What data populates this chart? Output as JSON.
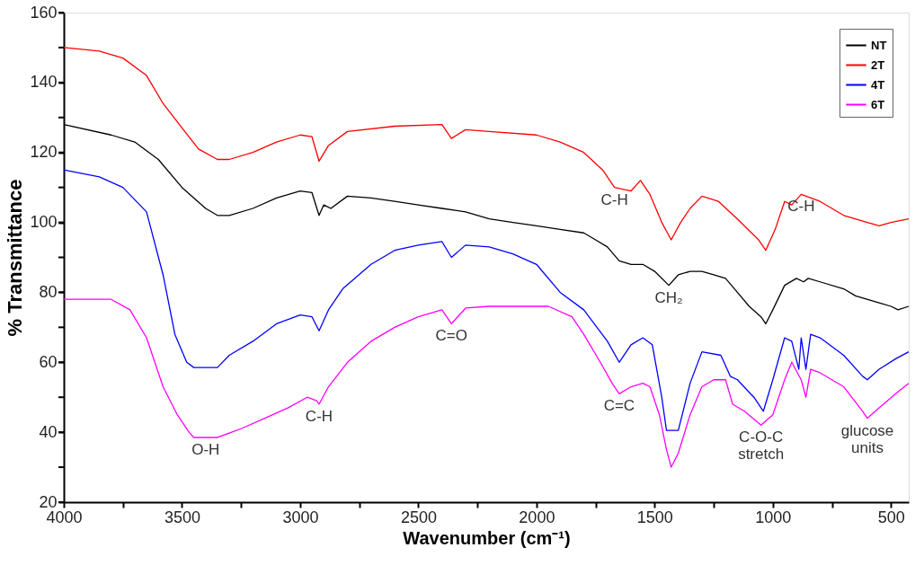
{
  "chart_data": {
    "type": "line",
    "xlabel": "Wavenumber (cm⁻¹)",
    "ylabel": "% Transmittance",
    "xlim": [
      4000,
      425
    ],
    "xticks": [
      4000,
      {
        "value": 3750,
        "label": null
      },
      3500,
      {
        "value": 3250,
        "label": null
      },
      3000,
      {
        "value": 2750,
        "label": null
      },
      2500,
      {
        "value": 2250,
        "label": null
      },
      2000,
      {
        "value": 1750,
        "label": null
      },
      1500,
      {
        "value": 1250,
        "label": null
      },
      1000,
      {
        "value": 750,
        "label": null
      },
      500
    ],
    "ylim": [
      20,
      160
    ],
    "yticks": [
      20,
      {
        "value": 30,
        "label": null
      },
      40,
      {
        "value": 50,
        "label": null
      },
      60,
      {
        "value": 70,
        "label": null
      },
      80,
      {
        "value": 90,
        "label": null
      },
      100,
      {
        "value": 110,
        "label": null
      },
      120,
      {
        "value": 130,
        "label": null
      },
      140,
      {
        "value": 150,
        "label": null
      },
      160
    ],
    "grid": false,
    "legend": "top right",
    "marker": "none",
    "line_style": "solid",
    "series": [
      {
        "name": "NT",
        "color": "#000000",
        "x": [
          4000,
          3800,
          3700,
          3600,
          3500,
          3400,
          3350,
          3300,
          3200,
          3100,
          3000,
          2950,
          2920,
          2900,
          2870,
          2800,
          2700,
          2600,
          2500,
          2400,
          2300,
          2200,
          2100,
          2000,
          1900,
          1800,
          1750,
          1700,
          1650,
          1600,
          1550,
          1500,
          1440,
          1400,
          1350,
          1300,
          1250,
          1200,
          1150,
          1100,
          1050,
          1030,
          1000,
          950,
          900,
          870,
          850,
          800,
          700,
          650,
          550,
          500,
          470,
          425
        ],
        "values": [
          128,
          125,
          123,
          118,
          110,
          104,
          102,
          102,
          104,
          107,
          109,
          108.5,
          102,
          105,
          104,
          107.5,
          107,
          106,
          105,
          104,
          103,
          101,
          100,
          99,
          98,
          97,
          95,
          93,
          89,
          88,
          88,
          86,
          82,
          85,
          86,
          86,
          85,
          84,
          80,
          76,
          73,
          71,
          75,
          82,
          84,
          83,
          84,
          83,
          81,
          79,
          77,
          76,
          75,
          76
        ]
      },
      {
        "name": "2T",
        "color": "#ff0000",
        "x": [
          4000,
          3850,
          3750,
          3650,
          3580,
          3500,
          3430,
          3350,
          3300,
          3200,
          3100,
          3000,
          2950,
          2920,
          2880,
          2800,
          2600,
          2400,
          2360,
          2300,
          2200,
          2000,
          1900,
          1800,
          1720,
          1670,
          1600,
          1560,
          1520,
          1470,
          1430,
          1390,
          1350,
          1300,
          1230,
          1150,
          1060,
          1030,
          990,
          950,
          920,
          880,
          800,
          700,
          600,
          550,
          500,
          425
        ],
        "values": [
          150,
          149,
          147,
          142,
          134,
          127,
          121,
          118,
          118,
          120,
          123,
          125,
          124.5,
          117.5,
          122,
          126,
          127.5,
          128,
          124,
          126.5,
          126,
          125,
          123,
          120,
          115,
          110,
          109,
          112,
          108,
          100,
          95,
          100,
          104,
          107.5,
          106,
          101,
          95,
          92,
          98,
          106,
          105,
          108,
          106,
          102,
          100,
          99,
          100,
          101
        ]
      },
      {
        "name": "4T",
        "color": "#0000ff",
        "x": [
          4000,
          3850,
          3750,
          3650,
          3580,
          3530,
          3480,
          3450,
          3350,
          3300,
          3200,
          3100,
          3000,
          2950,
          2920,
          2880,
          2820,
          2700,
          2600,
          2500,
          2400,
          2360,
          2300,
          2200,
          2100,
          2000,
          1900,
          1800,
          1700,
          1650,
          1600,
          1550,
          1510,
          1470,
          1450,
          1400,
          1350,
          1300,
          1220,
          1180,
          1150,
          1080,
          1040,
          1000,
          950,
          920,
          890,
          880,
          860,
          840,
          800,
          700,
          620,
          600,
          550,
          480,
          425
        ],
        "values": [
          115,
          113,
          110,
          103,
          85,
          68,
          60,
          58.5,
          58.5,
          62,
          66,
          71,
          73.5,
          73,
          69,
          75,
          81,
          88,
          92,
          93.5,
          94.5,
          90,
          93.5,
          93,
          91,
          88,
          80,
          75,
          66,
          60,
          65,
          67,
          65,
          50,
          40.5,
          40.5,
          54,
          63,
          62,
          56,
          55,
          50,
          46,
          55,
          67,
          66,
          58,
          67,
          58,
          68,
          67,
          62,
          56,
          55,
          58,
          61,
          63
        ]
      },
      {
        "name": "6T",
        "color": "#ff00ff",
        "x": [
          4000,
          3800,
          3720,
          3650,
          3580,
          3520,
          3470,
          3450,
          3350,
          3250,
          3150,
          3050,
          2970,
          2930,
          2920,
          2880,
          2800,
          2700,
          2600,
          2500,
          2400,
          2360,
          2300,
          2200,
          1950,
          1850,
          1800,
          1730,
          1680,
          1650,
          1600,
          1550,
          1520,
          1480,
          1450,
          1430,
          1400,
          1350,
          1300,
          1250,
          1200,
          1170,
          1120,
          1050,
          1000,
          950,
          920,
          880,
          860,
          840,
          800,
          700,
          620,
          600,
          550,
          480,
          425
        ],
        "values": [
          78,
          78,
          75,
          67,
          53,
          45,
          40,
          38.5,
          38.5,
          41,
          44,
          47,
          50,
          49,
          48,
          53,
          60,
          66,
          70,
          73,
          75,
          71,
          75.5,
          76,
          76,
          73,
          68,
          60,
          54,
          51,
          53,
          54,
          53,
          45,
          35,
          30,
          34,
          45,
          53,
          55,
          55,
          48,
          46,
          42,
          45,
          55,
          60,
          55,
          50,
          58,
          57,
          53,
          46,
          44,
          47,
          51,
          54
        ]
      }
    ],
    "annotations": [
      {
        "text": "O-H",
        "x": 3400,
        "y": 38.5
      },
      {
        "text": "C-H",
        "x": 2920,
        "y": 48
      },
      {
        "text": "C=O",
        "x": 2360,
        "y": 71
      },
      {
        "text": "C=C",
        "x": 1650,
        "y": 51
      },
      {
        "text": "C-H",
        "x": 1670,
        "y": 110
      },
      {
        "text": "CH₂",
        "x": 1440,
        "y": 82
      },
      {
        "text": "C-H",
        "x": 880,
        "y": 108
      },
      {
        "text": "C-O-C\nstretch",
        "x": 1050,
        "y": 42
      },
      {
        "text": "glucose\nunits",
        "x": 600,
        "y": 44
      }
    ]
  }
}
